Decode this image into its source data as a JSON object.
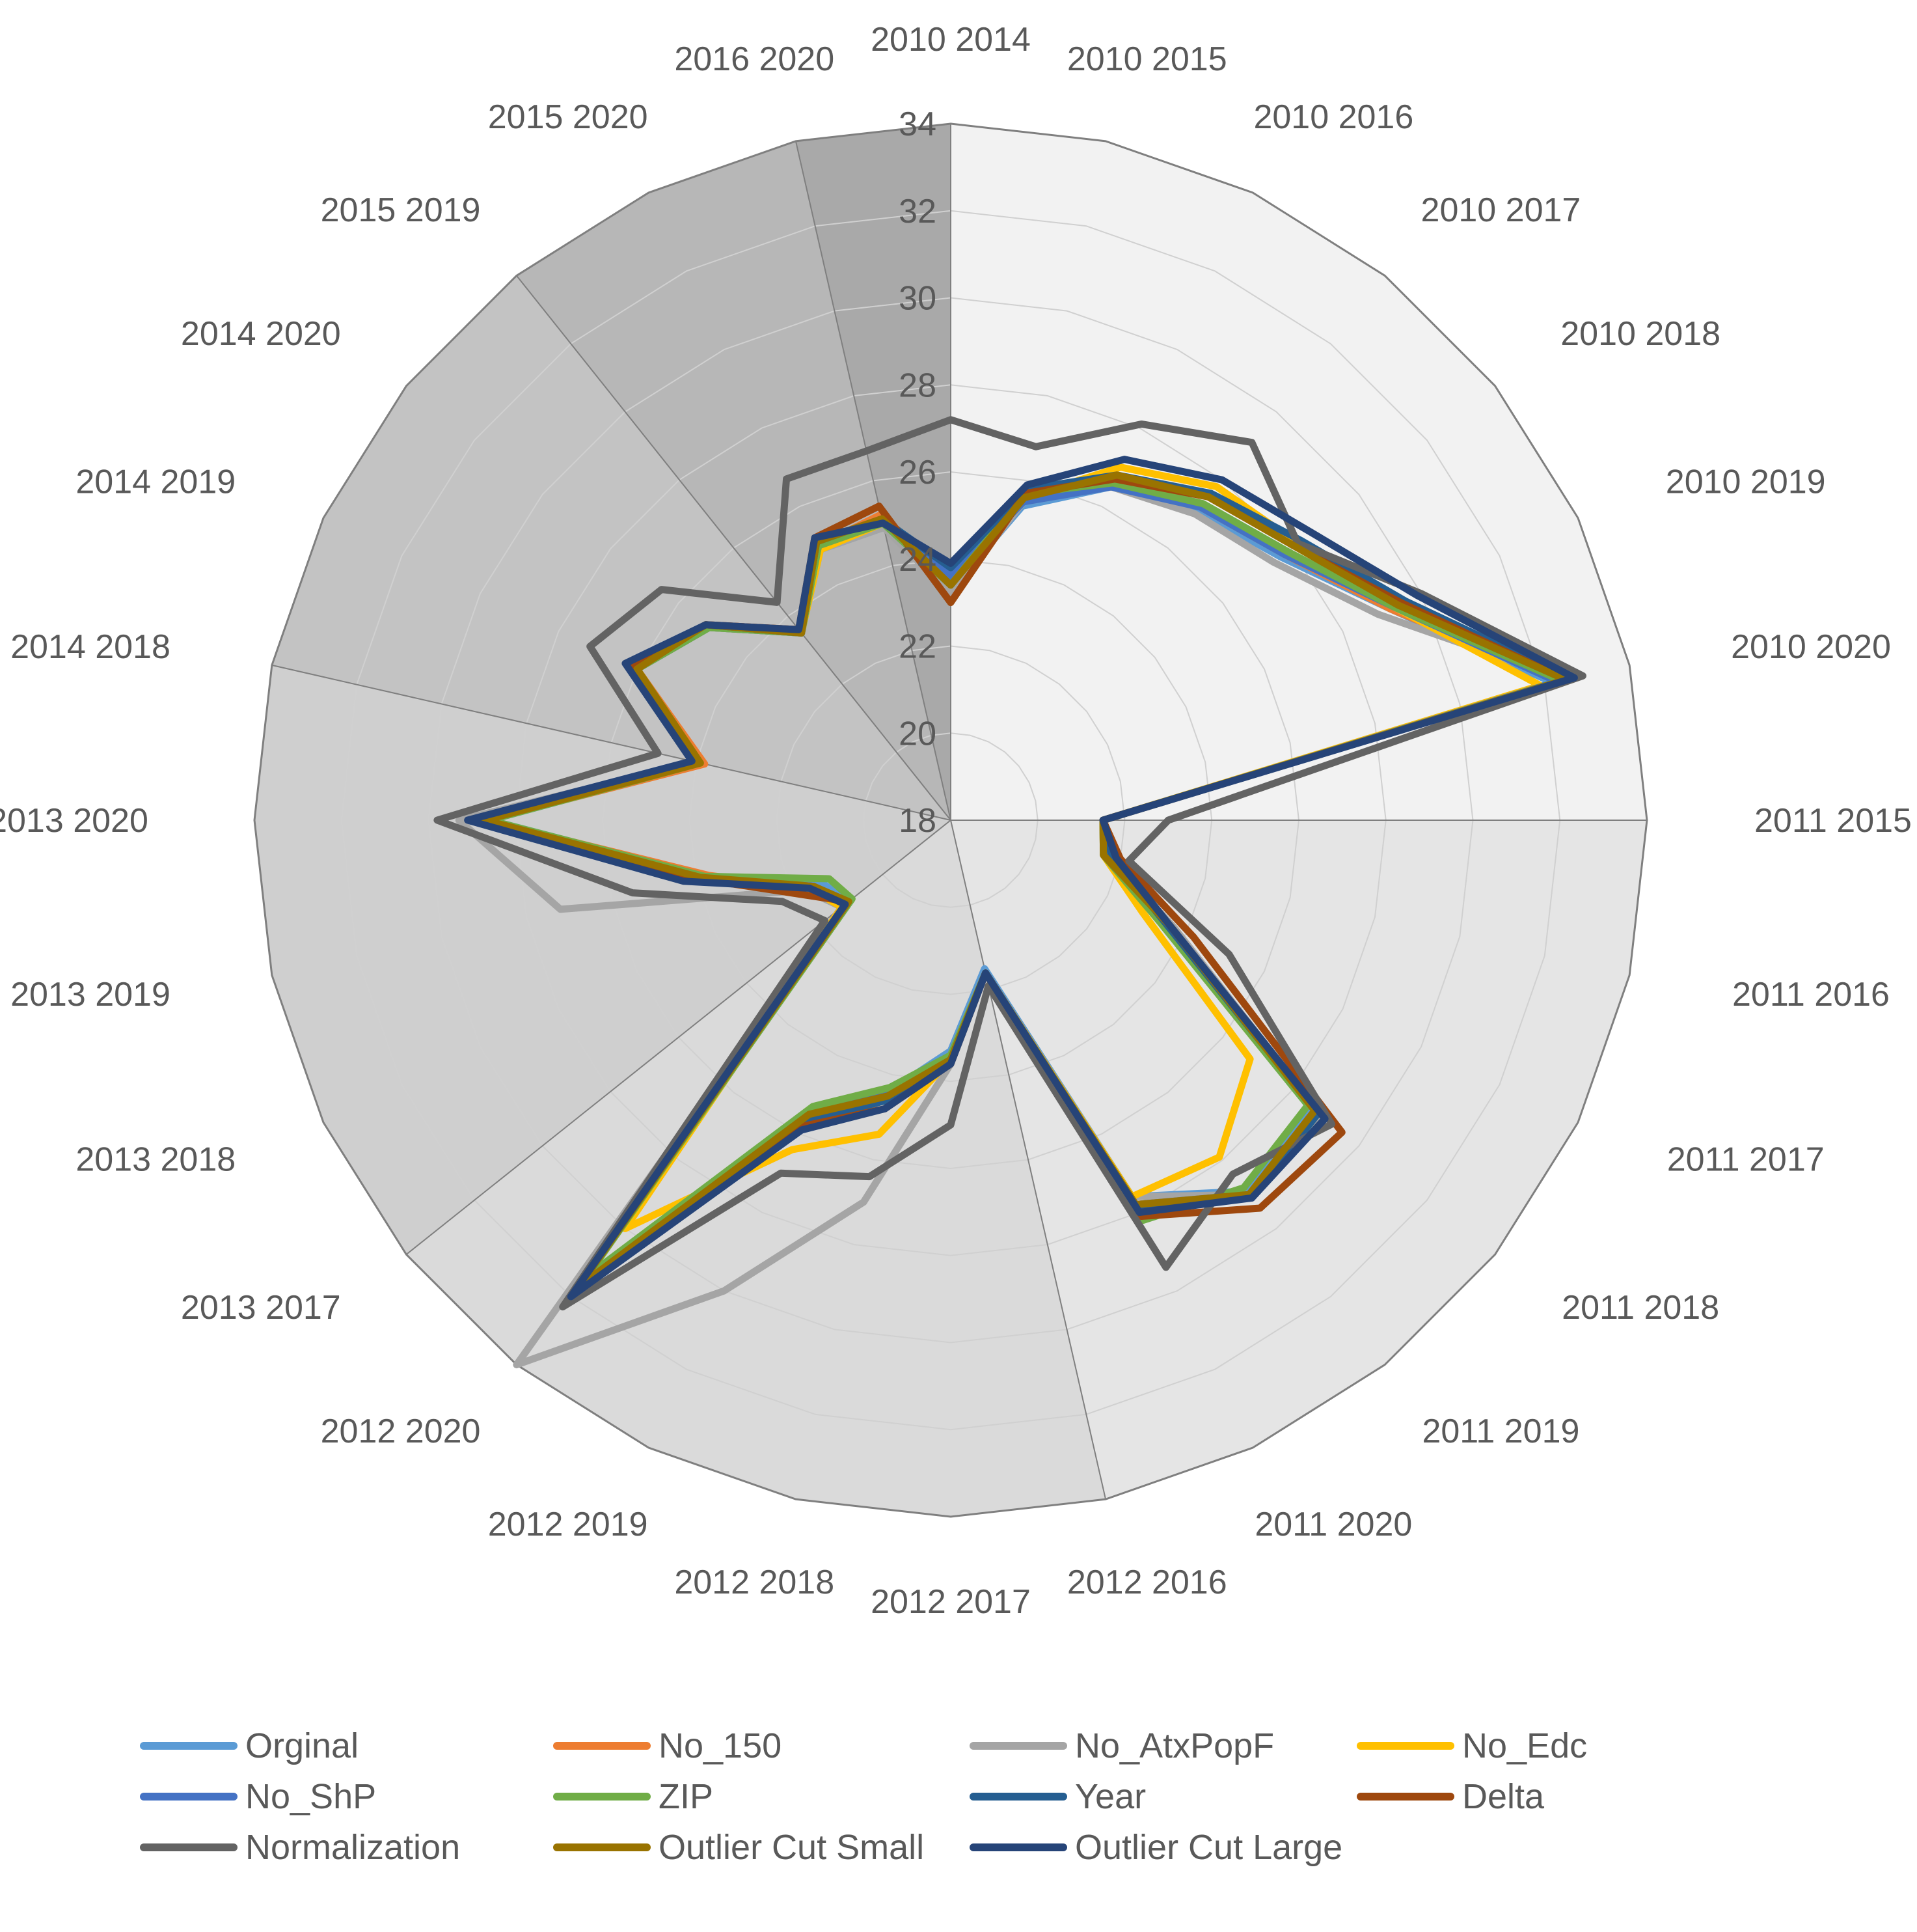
{
  "chart_data": {
    "type": "radar",
    "rmin": 18,
    "rmax": 34,
    "ticks": [
      "18",
      "20",
      "22",
      "24",
      "26",
      "28",
      "30",
      "32",
      "34"
    ],
    "categories": [
      "2010 2014",
      "2010 2015",
      "2010 2016",
      "2010 2017",
      "2010 2018",
      "2010 2019",
      "2010 2020",
      "2011 2015",
      "2011 2016",
      "2011 2017",
      "2011 2018",
      "2011 2019",
      "2011 2020",
      "2012 2016",
      "2012 2017",
      "2012 2018",
      "2012 2019",
      "2012 2020",
      "2013 2017",
      "2013 2018",
      "2013 2019",
      "2013 2020",
      "2014 2018",
      "2014 2019",
      "2014 2020",
      "2015 2019",
      "2015 2020",
      "2016 2020"
    ],
    "sectors": [
      {
        "from": 0,
        "to": 7,
        "color": "#f2f2f2"
      },
      {
        "from": 7,
        "to": 13,
        "color": "#e5e5e5"
      },
      {
        "from": 13,
        "to": 18,
        "color": "#dadada"
      },
      {
        "from": 18,
        "to": 22,
        "color": "#cfcfcf"
      },
      {
        "from": 22,
        "to": 25,
        "color": "#c3c3c3"
      },
      {
        "from": 25,
        "to": 27,
        "color": "#b7b7b7"
      },
      {
        "from": 27,
        "to": 28,
        "color": "#a9a9a9"
      }
    ],
    "series": [
      {
        "name": "Orginal",
        "color": "#5b9bd5",
        "values": [
          23.3,
          25.4,
          26.5,
          27.1,
          27.7,
          29.2,
          32.2,
          21.5,
          21.6,
          23.6,
          28.6,
          28.9,
          27.6,
          21.5,
          23.3,
          24.4,
          25.4,
          31.6,
          21.0,
          21.3,
          23.8,
          28.6,
          23.9,
          26.0,
          25.1,
          23.5,
          24.9,
          24.9
        ]
      },
      {
        "name": "No_150",
        "color": "#ed7d31",
        "values": [
          23.1,
          25.6,
          26.6,
          27.2,
          27.8,
          29.2,
          32.4,
          21.5,
          21.7,
          23.6,
          28.7,
          29.0,
          27.8,
          21.6,
          23.4,
          24.6,
          25.6,
          31.8,
          21.1,
          21.6,
          23.7,
          28.7,
          23.8,
          26.0,
          25.2,
          23.6,
          25.0,
          25.2
        ]
      },
      {
        "name": "No_AtxPopF",
        "color": "#a5a5a5",
        "values": [
          23.2,
          25.5,
          26.5,
          27.0,
          27.5,
          28.9,
          32.5,
          21.5,
          21.7,
          23.7,
          28.9,
          29.0,
          27.6,
          21.6,
          23.6,
          27.0,
          30.0,
          34.0,
          21.2,
          21.7,
          27.2,
          29.3,
          24.0,
          26.1,
          25.1,
          23.5,
          24.9,
          24.9
        ]
      },
      {
        "name": "No_Edc",
        "color": "#ffc000",
        "values": [
          23.5,
          25.6,
          27.0,
          27.8,
          28.2,
          29.3,
          31.9,
          21.5,
          21.6,
          22.9,
          26.8,
          27.9,
          27.6,
          21.6,
          23.5,
          25.4,
          26.4,
          30.0,
          21.2,
          21.6,
          23.9,
          28.8,
          23.9,
          26.0,
          25.1,
          23.5,
          24.9,
          25.0
        ]
      },
      {
        "name": "No_ShP",
        "color": "#4472c4",
        "values": [
          23.6,
          25.5,
          26.5,
          27.2,
          27.8,
          29.3,
          32.3,
          21.5,
          21.7,
          23.4,
          28.8,
          29.0,
          27.8,
          21.6,
          23.5,
          24.4,
          25.5,
          31.6,
          21.0,
          21.5,
          23.9,
          28.8,
          24.0,
          26.0,
          25.1,
          23.5,
          25.0,
          25.0
        ]
      },
      {
        "name": "ZIP",
        "color": "#70ad47",
        "values": [
          23.4,
          25.7,
          26.6,
          27.3,
          27.9,
          29.3,
          32.4,
          21.5,
          21.6,
          23.3,
          28.5,
          28.8,
          28.2,
          21.6,
          23.4,
          24.3,
          25.3,
          31.4,
          20.9,
          21.1,
          23.8,
          28.6,
          23.9,
          26.0,
          25.1,
          23.5,
          25.0,
          25.0
        ]
      },
      {
        "name": "Year",
        "color": "#255e91",
        "values": [
          23.8,
          25.8,
          26.8,
          27.6,
          28.3,
          29.6,
          32.6,
          21.5,
          21.8,
          23.5,
          28.8,
          29.1,
          27.9,
          21.6,
          23.5,
          24.6,
          25.7,
          31.9,
          21.1,
          21.5,
          24.1,
          29.0,
          24.0,
          26.1,
          25.2,
          23.5,
          25.1,
          25.1
        ]
      },
      {
        "name": "Delta",
        "color": "#9e480e",
        "values": [
          23.0,
          25.7,
          26.7,
          27.5,
          28.1,
          29.5,
          32.5,
          21.5,
          22.0,
          24.2,
          29.5,
          29.4,
          28.1,
          21.6,
          23.6,
          24.8,
          25.8,
          31.9,
          21.0,
          21.9,
          24.0,
          28.9,
          24.0,
          26.2,
          25.2,
          23.6,
          25.2,
          25.4
        ]
      },
      {
        "name": "Normalization",
        "color": "#636363",
        "values": [
          27.2,
          26.8,
          28.1,
          29.1,
          28.2,
          30.0,
          32.9,
          23.0,
          22.2,
          25.1,
          29.2,
          28.4,
          29.4,
          21.9,
          25.0,
          26.4,
          27.0,
          32.3,
          21.7,
          22.3,
          25.5,
          29.8,
          24.9,
          27.2,
          26.5,
          24.4,
          26.7,
          26.7
        ]
      },
      {
        "name": "Outlier Cut Small",
        "color": "#997300",
        "values": [
          23.4,
          25.6,
          26.8,
          27.5,
          28.1,
          29.4,
          32.5,
          21.5,
          21.6,
          23.6,
          28.7,
          29.0,
          27.8,
          21.6,
          23.5,
          24.5,
          25.5,
          31.7,
          21.0,
          21.5,
          23.9,
          28.7,
          23.9,
          26.0,
          25.2,
          23.5,
          25.1,
          25.1
        ]
      },
      {
        "name": "Outlier Cut Large",
        "color": "#264478",
        "values": [
          23.9,
          25.9,
          27.2,
          28.0,
          28.6,
          29.9,
          32.7,
          21.5,
          21.9,
          23.6,
          29.0,
          29.1,
          28.0,
          21.6,
          23.6,
          24.8,
          25.9,
          32.0,
          21.1,
          21.6,
          24.3,
          29.1,
          24.1,
          26.3,
          25.2,
          23.6,
          25.2,
          25.0
        ]
      }
    ]
  }
}
